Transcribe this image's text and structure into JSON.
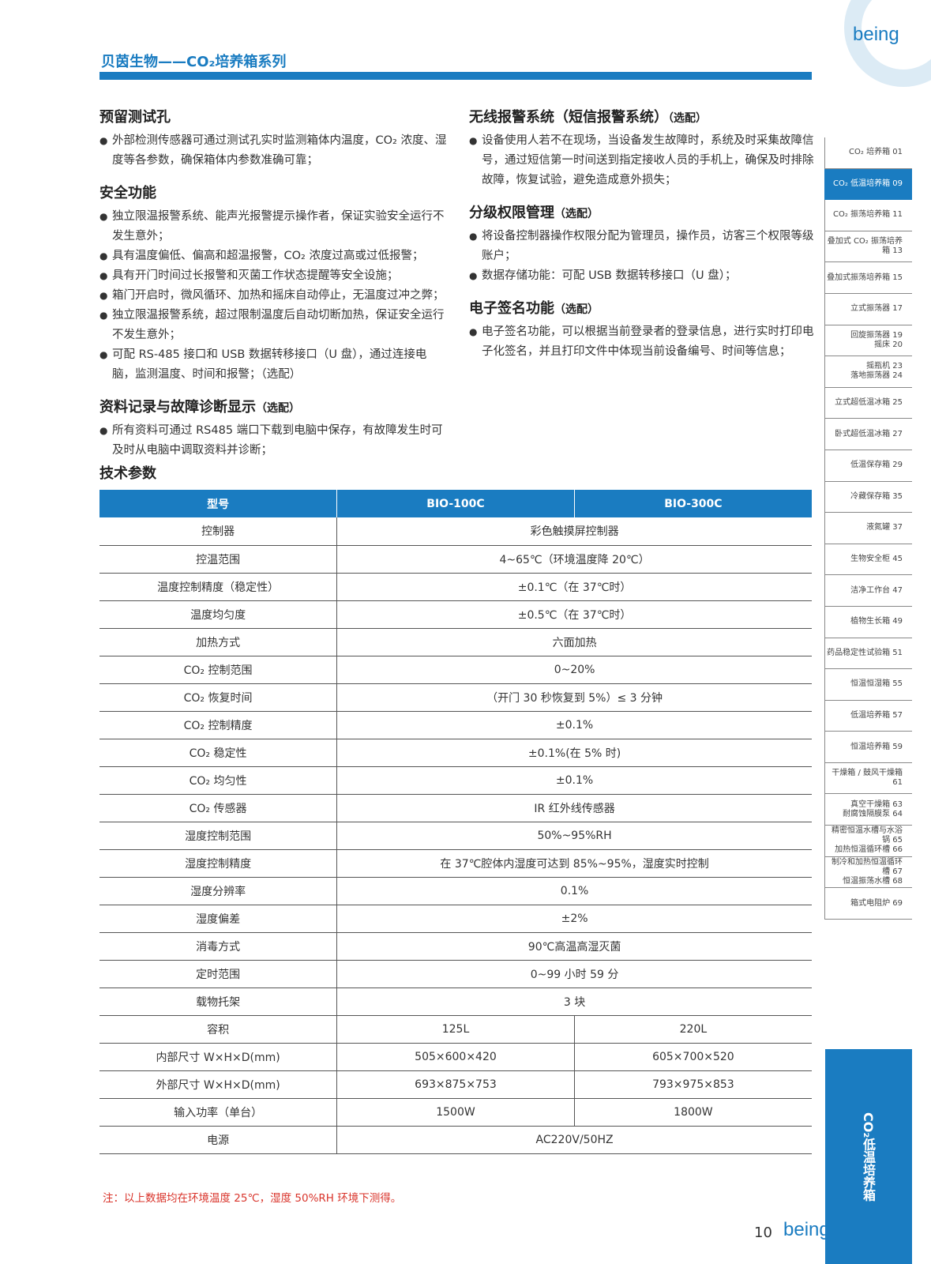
{
  "brand": "being",
  "header": {
    "title": "贝茵生物——CO₂培养箱系列"
  },
  "left": [
    {
      "title": "预留测试孔",
      "tag": "",
      "items": [
        "外部检测传感器可通过测试孔实时监测箱体内温度，CO₂ 浓度、湿度等各参数，确保箱体内参数准确可靠；"
      ]
    },
    {
      "title": "安全功能",
      "tag": "",
      "items": [
        "独立限温报警系统、能声光报警提示操作者，保证实验安全运行不发生意外；",
        "具有温度偏低、偏高和超温报警，CO₂ 浓度过高或过低报警；",
        "具有开门时间过长报警和灭菌工作状态提醒等安全设施；",
        "箱门开启时，微风循环、加热和摇床自动停止，无温度过冲之弊；",
        "独立限温报警系统，超过限制温度后自动切断加热，保证安全运行不发生意外；",
        "可配 RS-485 接口和 USB 数据转移接口（U 盘），通过连接电脑，监测温度、时间和报警；（选配）"
      ]
    },
    {
      "title": "资料记录与故障诊断显示",
      "tag": "（选配）",
      "items": [
        "所有资料可通过 RS485 端口下载到电脑中保存，有故障发生时可及时从电脑中调取资料并诊断；"
      ]
    }
  ],
  "right": [
    {
      "title": "无线报警系统（短信报警系统）",
      "tag": "（选配）",
      "items": [
        "设备使用人若不在现场，当设备发生故障时，系统及时采集故障信号，通过短信第一时间送到指定接收人员的手机上，确保及时排除故障，恢复试验，避免造成意外损失；"
      ]
    },
    {
      "title": "分级权限管理",
      "tag": "（选配）",
      "items": [
        "将设备控制器操作权限分配为管理员，操作员，访客三个权限等级账户；",
        "数据存储功能：可配 USB 数据转移接口（U 盘）；"
      ]
    },
    {
      "title": "电子签名功能",
      "tag": "（选配）",
      "items": [
        "电子签名功能，可以根据当前登录者的登录信息，进行实时打印电子化签名，并且打印文件中体现当前设备编号、时间等信息；"
      ]
    }
  ],
  "specs": {
    "title": "技术参数",
    "headers": [
      "型号",
      "BIO-100C",
      "BIO-300C"
    ],
    "rows": [
      [
        "控制器",
        "彩色触摸屏控制器"
      ],
      [
        "控温范围",
        "4~65℃（环境温度降 20℃）"
      ],
      [
        "温度控制精度（稳定性）",
        "±0.1℃（在 37℃时）"
      ],
      [
        "温度均匀度",
        "±0.5℃（在 37℃时）"
      ],
      [
        "加热方式",
        "六面加热"
      ],
      [
        "CO₂ 控制范围",
        "0~20%"
      ],
      [
        "CO₂ 恢复时间",
        "（开门 30 秒恢复到 5%）≤ 3 分钟"
      ],
      [
        "CO₂ 控制精度",
        "±0.1%"
      ],
      [
        "CO₂ 稳定性",
        "±0.1%(在 5% 时)"
      ],
      [
        "CO₂ 均匀性",
        "±0.1%"
      ],
      [
        "CO₂ 传感器",
        "IR 红外线传感器"
      ],
      [
        "湿度控制范围",
        "50%~95%RH"
      ],
      [
        "湿度控制精度",
        "在 37℃腔体内湿度可达到 85%~95%，湿度实时控制"
      ],
      [
        "湿度分辨率",
        "0.1%"
      ],
      [
        "湿度偏差",
        "±2%"
      ],
      [
        "消毒方式",
        "90℃高温高湿灭菌"
      ],
      [
        "定时范围",
        "0~99 小时 59 分"
      ],
      [
        "载物托架",
        "3 块"
      ],
      [
        "容积",
        "125L",
        "220L"
      ],
      [
        "内部尺寸 W×H×D(mm)",
        "505×600×420",
        "605×700×520"
      ],
      [
        "外部尺寸 W×H×D(mm)",
        "693×875×753",
        "793×975×853"
      ],
      [
        "输入功率（单台）",
        "1500W",
        "1800W"
      ],
      [
        "电源",
        "AC220V/50HZ"
      ]
    ],
    "note": "注：以上数据均在环境温度 25℃，湿度 50%RH 环境下测得。"
  },
  "sidebar": {
    "active": 1,
    "items": [
      "CO₂ 培养箱 01",
      "CO₂ 低温培养箱 09",
      "CO₂ 振荡培养箱 11",
      "叠加式 CO₂ 振荡培养箱 13",
      "叠加式振荡培养箱 15",
      "立式振荡器 17",
      "回旋振荡器 19\n摇床 20",
      "摇瓶机 23\n落地振荡器 24",
      "立式超低温冰箱 25",
      "卧式超低温冰箱 27",
      "低温保存箱 29",
      "冷藏保存箱 35",
      "液氮罐 37",
      "生物安全柜 45",
      "洁净工作台 47",
      "植物生长箱 49",
      "药品稳定性试验箱 51",
      "恒温恒湿箱 55",
      "低温培养箱 57",
      "恒温培养箱 59",
      "干燥箱 / 鼓风干燥箱 61",
      "真空干燥箱 63\n耐腐蚀隔膜泵 64",
      "精密恒温水槽与水浴锅 65\n加热恒温循环槽 66",
      "制冷和加热恒温循环槽 67\n恒温振荡水槽 68",
      "箱式电阻炉 69"
    ],
    "section_label": "CO₂低温培养箱"
  },
  "footer": {
    "page": "10"
  },
  "colors": {
    "accent": "#1a7cc1",
    "note": "#d9342b"
  }
}
